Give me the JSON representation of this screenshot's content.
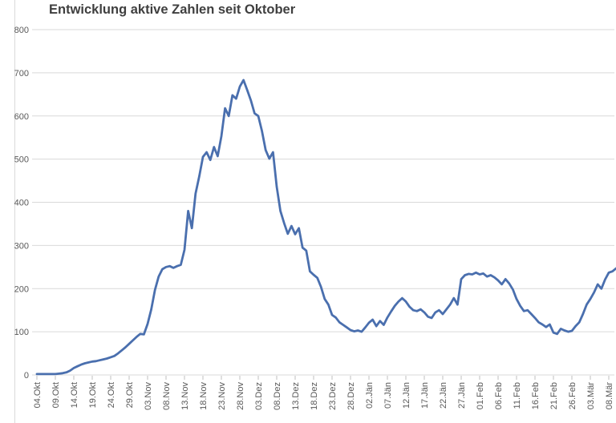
{
  "title": "Entwicklung aktive Zahlen seit Oktober",
  "colors": {
    "line": "#4a6fae",
    "gridline": "#d9d9d9",
    "tick_mark": "#bfbfbf",
    "axis_label": "#595959",
    "title_text": "#3f3f3f",
    "background": "#ffffff"
  },
  "chart_data": {
    "type": "line",
    "title": "Entwicklung aktive Zahlen seit Oktober",
    "xlabel": "",
    "ylabel": "",
    "ylim": [
      0,
      800
    ],
    "y_ticks": [
      0,
      100,
      200,
      300,
      400,
      500,
      600,
      700,
      800
    ],
    "grid": "horizontal",
    "legend": "none",
    "marker": "none",
    "x_tick_labels": [
      "04.Okt",
      "09.Okt",
      "14.Okt",
      "19.Okt",
      "24.Okt",
      "29.Okt",
      "03.Nov",
      "08.Nov",
      "13.Nov",
      "18.Nov",
      "23.Nov",
      "28.Nov",
      "03.Dez",
      "08.Dez",
      "13.Dez",
      "18.Dez",
      "23.Dez",
      "28.Dez",
      "02.Jän",
      "07.Jän",
      "12.Jän",
      "17.Jän",
      "22.Jän",
      "27.Jän",
      "01.Feb",
      "06.Feb",
      "11.Feb",
      "16.Feb",
      "21.Feb",
      "26.Feb",
      "03.Mär",
      "08.Mär"
    ],
    "x_tick_every_n_points": 5,
    "x_start_label": "04.Okt",
    "x_frequency": "daily",
    "values_daily": [
      2,
      2,
      2,
      2,
      2,
      2,
      3,
      4,
      6,
      10,
      16,
      20,
      24,
      27,
      29,
      31,
      32,
      34,
      36,
      38,
      41,
      44,
      50,
      57,
      64,
      72,
      80,
      88,
      95,
      94,
      118,
      152,
      197,
      228,
      245,
      250,
      252,
      248,
      252,
      255,
      290,
      380,
      340,
      420,
      460,
      505,
      516,
      498,
      528,
      507,
      553,
      618,
      600,
      648,
      640,
      668,
      683,
      660,
      636,
      606,
      600,
      565,
      521,
      501,
      516,
      436,
      380,
      352,
      327,
      345,
      326,
      340,
      295,
      288,
      240,
      232,
      225,
      204,
      176,
      163,
      139,
      133,
      122,
      116,
      110,
      104,
      101,
      103,
      100,
      110,
      121,
      128,
      113,
      125,
      116,
      133,
      147,
      160,
      170,
      178,
      170,
      158,
      150,
      148,
      152,
      145,
      135,
      132,
      145,
      150,
      141,
      152,
      163,
      178,
      163,
      222,
      231,
      234,
      233,
      237,
      233,
      235,
      228,
      231,
      226,
      219,
      210,
      222,
      212,
      198,
      176,
      160,
      148,
      150,
      141,
      132,
      122,
      117,
      111,
      117,
      98,
      95,
      107,
      103,
      100,
      102,
      113,
      122,
      141,
      163,
      176,
      191,
      210,
      200,
      221,
      237,
      240,
      247
    ]
  }
}
